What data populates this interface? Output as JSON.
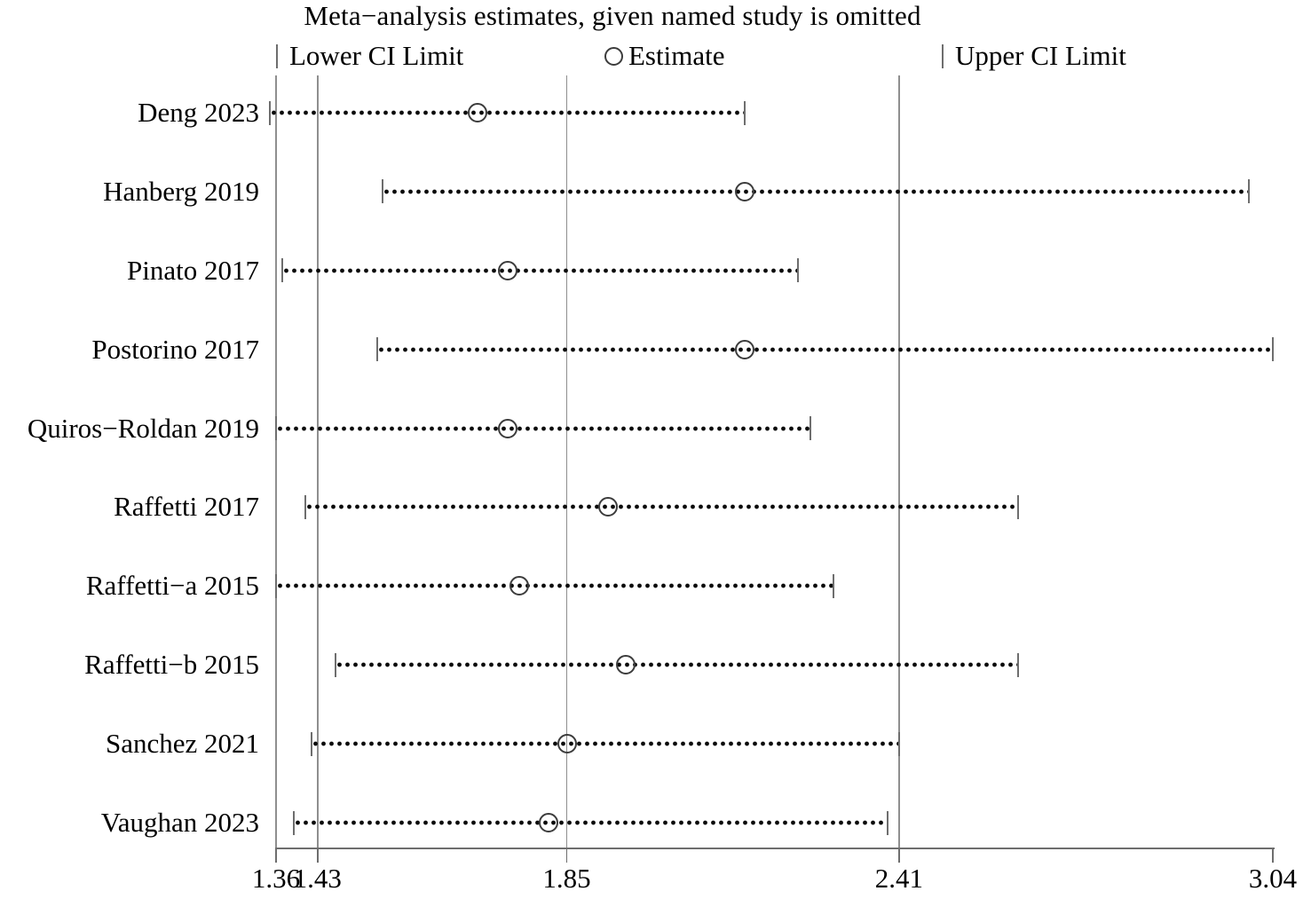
{
  "title": "Meta−analysis estimates, given named study is omitted",
  "legend": {
    "lower": "Lower CI Limit",
    "estimate": "Estimate",
    "upper": "Upper CI Limit"
  },
  "colors": {
    "background": "#ffffff",
    "text": "#000000",
    "gridline": "#8f8f8f",
    "dotted_line": "#0a0a0a",
    "ci_limit_marker": "#6e6e6e",
    "estimate_ring": "#3c3c3c"
  },
  "chart_data": {
    "type": "scatter",
    "subtype": "leave-one-out sensitivity forest plot (meta-analysis influence)",
    "title": "Meta−analysis estimates, given named study is omitted",
    "categories": [
      "Deng 2023",
      "Hanberg 2019",
      "Pinato 2017",
      "Postorino 2017",
      "Quiros−Roldan 2019",
      "Raffetti 2017",
      "Raffetti−a 2015",
      "Raffetti−b 2015",
      "Sanchez 2021",
      "Vaughan 2023"
    ],
    "series": [
      {
        "name": "Lower CI Limit",
        "values": [
          1.35,
          1.54,
          1.37,
          1.53,
          1.36,
          1.41,
          1.36,
          1.46,
          1.42,
          1.39
        ]
      },
      {
        "name": "Estimate",
        "values": [
          1.7,
          2.15,
          1.75,
          2.15,
          1.75,
          1.92,
          1.77,
          1.95,
          1.85,
          1.82
        ]
      },
      {
        "name": "Upper CI Limit",
        "values": [
          2.15,
          3.0,
          2.24,
          3.04,
          2.26,
          2.61,
          2.3,
          2.61,
          2.41,
          2.39
        ]
      }
    ],
    "xlim": [
      1.36,
      3.04
    ],
    "xticks": [
      1.36,
      1.43,
      1.85,
      2.41,
      3.04
    ],
    "xtick_labels": [
      "1.36",
      "1.43",
      "1.85",
      "2.41",
      "3.04"
    ],
    "gridlines": [
      1.36,
      1.43,
      1.85,
      2.41
    ],
    "gridline_meaning": "overall lower CI (1.43), overall estimate (1.85), overall upper CI (2.41), axis min (1.36)",
    "legend_position": "top",
    "xlabel": "",
    "ylabel": ""
  }
}
